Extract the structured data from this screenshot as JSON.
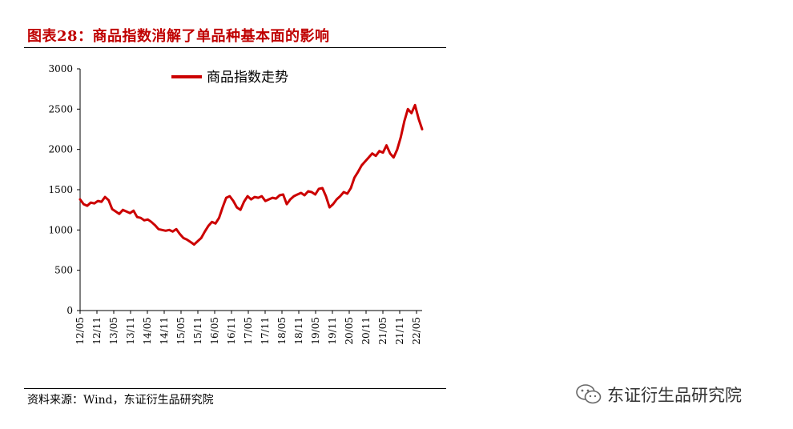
{
  "header": {
    "figure_title": "图表28：商品指数消解了单品种基本面的影响"
  },
  "footer": {
    "source": "资料来源：Wind，东证衍生品研究院"
  },
  "watermark": {
    "text": "东证衍生品研究院",
    "icon": "wechat-icon"
  },
  "colors": {
    "title": "#c00000",
    "series": "#cc0000",
    "axis": "#000000"
  },
  "chart_data": {
    "type": "line",
    "title": "",
    "xlabel": "",
    "ylabel": "",
    "ylim": [
      0,
      3000
    ],
    "yticks": [
      "0",
      "500",
      "1000",
      "1500",
      "2000",
      "2500",
      "3000"
    ],
    "xticks": [
      "12/05",
      "12/11",
      "13/05",
      "13/11",
      "14/05",
      "14/11",
      "15/05",
      "15/11",
      "16/05",
      "16/11",
      "17/05",
      "17/11",
      "18/05",
      "18/11",
      "19/05",
      "19/11",
      "20/05",
      "20/11",
      "21/05",
      "21/11",
      "22/05"
    ],
    "grid": false,
    "legend_position": "top-center",
    "series": [
      {
        "name": "商品指数走势",
        "x_start": "12/05",
        "x_end": "22/07",
        "values": [
          1380,
          1320,
          1300,
          1340,
          1330,
          1360,
          1350,
          1410,
          1370,
          1260,
          1230,
          1200,
          1250,
          1230,
          1210,
          1240,
          1160,
          1150,
          1120,
          1130,
          1100,
          1060,
          1010,
          1000,
          990,
          1000,
          980,
          1010,
          950,
          900,
          880,
          850,
          820,
          860,
          900,
          980,
          1050,
          1100,
          1080,
          1150,
          1280,
          1400,
          1420,
          1360,
          1280,
          1250,
          1350,
          1420,
          1380,
          1410,
          1400,
          1420,
          1360,
          1380,
          1400,
          1390,
          1430,
          1440,
          1320,
          1380,
          1420,
          1440,
          1460,
          1430,
          1480,
          1470,
          1440,
          1510,
          1520,
          1420,
          1280,
          1320,
          1380,
          1420,
          1470,
          1450,
          1520,
          1650,
          1720,
          1800,
          1850,
          1900,
          1950,
          1920,
          1980,
          1960,
          2050,
          1950,
          1900,
          2000,
          2150,
          2350,
          2500,
          2450,
          2550,
          2380,
          2250
        ]
      }
    ]
  }
}
